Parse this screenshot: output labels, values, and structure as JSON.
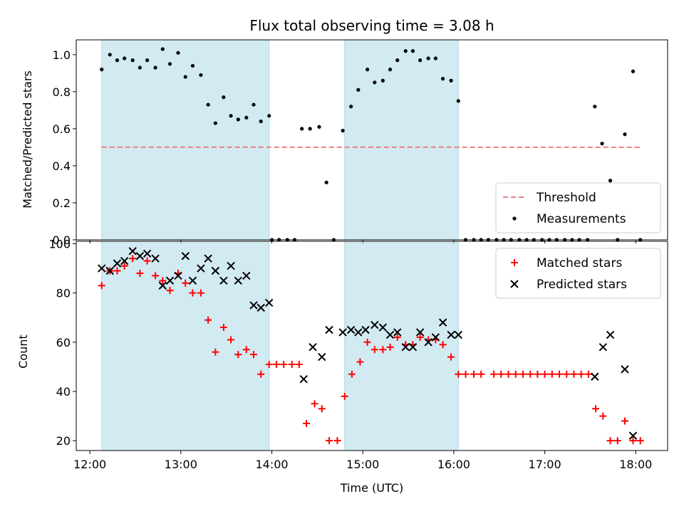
{
  "chart_data": {
    "type": "scatter",
    "title": "Flux total observing time = 3.08 h",
    "xlabel": "Time (UTC)",
    "x_unit": "hours UTC",
    "xlim": [
      11.85,
      18.35
    ],
    "x_tick_values": [
      12,
      13,
      14,
      15,
      16,
      17,
      18
    ],
    "x_tick_labels": [
      "12:00",
      "13:00",
      "14:00",
      "15:00",
      "16:00",
      "17:00",
      "18:00"
    ],
    "shaded_intervals": [
      [
        12.13,
        13.97
      ],
      [
        14.8,
        16.05
      ]
    ],
    "shade_color": "#add8e6",
    "panels": [
      {
        "ylabel": "Matched/Predicted stars",
        "ylim": [
          0,
          1.08
        ],
        "yticks": [
          "0.0",
          "0.2",
          "0.4",
          "0.6",
          "0.8",
          "1.0"
        ],
        "ytick_values": [
          0,
          0.2,
          0.4,
          0.6,
          0.8,
          1.0
        ],
        "legend": "bottom-right",
        "threshold": {
          "name": "Threshold",
          "value": 0.5,
          "x_range": [
            12.13,
            18.05
          ],
          "color": "#f08080"
        },
        "series": [
          {
            "name": "Measurements",
            "marker": "dot",
            "color": "#000000",
            "points": [
              [
                12.13,
                0.92
              ],
              [
                12.22,
                1.0
              ],
              [
                12.3,
                0.97
              ],
              [
                12.38,
                0.98
              ],
              [
                12.47,
                0.97
              ],
              [
                12.55,
                0.93
              ],
              [
                12.63,
                0.97
              ],
              [
                12.72,
                0.93
              ],
              [
                12.8,
                1.03
              ],
              [
                12.88,
                0.95
              ],
              [
                12.97,
                1.01
              ],
              [
                13.05,
                0.88
              ],
              [
                13.13,
                0.94
              ],
              [
                13.22,
                0.89
              ],
              [
                13.3,
                0.73
              ],
              [
                13.38,
                0.63
              ],
              [
                13.47,
                0.77
              ],
              [
                13.55,
                0.67
              ],
              [
                13.63,
                0.65
              ],
              [
                13.72,
                0.66
              ],
              [
                13.8,
                0.73
              ],
              [
                13.88,
                0.64
              ],
              [
                13.97,
                0.67
              ],
              [
                14.0,
                0.0
              ],
              [
                14.08,
                0.0
              ],
              [
                14.17,
                0.0
              ],
              [
                14.25,
                0.0
              ],
              [
                14.33,
                0.6
              ],
              [
                14.42,
                0.6
              ],
              [
                14.52,
                0.61
              ],
              [
                14.6,
                0.31
              ],
              [
                14.68,
                0.0
              ],
              [
                14.78,
                0.59
              ],
              [
                14.87,
                0.72
              ],
              [
                14.95,
                0.81
              ],
              [
                15.05,
                0.92
              ],
              [
                15.13,
                0.85
              ],
              [
                15.22,
                0.86
              ],
              [
                15.3,
                0.92
              ],
              [
                15.38,
                0.97
              ],
              [
                15.47,
                1.02
              ],
              [
                15.55,
                1.02
              ],
              [
                15.63,
                0.97
              ],
              [
                15.72,
                0.98
              ],
              [
                15.8,
                0.98
              ],
              [
                15.88,
                0.87
              ],
              [
                15.97,
                0.86
              ],
              [
                16.05,
                0.75
              ],
              [
                16.13,
                0.0
              ],
              [
                16.22,
                0.0
              ],
              [
                16.3,
                0.0
              ],
              [
                16.38,
                0.0
              ],
              [
                16.47,
                0.0
              ],
              [
                16.55,
                0.0
              ],
              [
                16.63,
                0.0
              ],
              [
                16.72,
                0.0
              ],
              [
                16.8,
                0.0
              ],
              [
                16.88,
                0.0
              ],
              [
                16.97,
                0.0
              ],
              [
                17.05,
                0.0
              ],
              [
                17.13,
                0.0
              ],
              [
                17.22,
                0.0
              ],
              [
                17.3,
                0.0
              ],
              [
                17.38,
                0.0
              ],
              [
                17.47,
                0.0
              ],
              [
                17.55,
                0.72
              ],
              [
                17.63,
                0.52
              ],
              [
                17.72,
                0.32
              ],
              [
                17.8,
                0.0
              ],
              [
                17.88,
                0.57
              ],
              [
                17.97,
                0.91
              ],
              [
                18.05,
                0.0
              ]
            ]
          }
        ]
      },
      {
        "ylabel": "Count",
        "ylim": [
          16,
          101
        ],
        "yticks": [
          "20",
          "40",
          "60",
          "80",
          "100"
        ],
        "ytick_values": [
          20,
          40,
          60,
          80,
          100
        ],
        "legend": "top-right",
        "series": [
          {
            "name": "Matched stars",
            "marker": "plus",
            "color": "#ff0000",
            "points": [
              [
                12.13,
                83
              ],
              [
                12.22,
                89
              ],
              [
                12.3,
                89
              ],
              [
                12.38,
                91
              ],
              [
                12.47,
                94
              ],
              [
                12.55,
                88
              ],
              [
                12.63,
                93
              ],
              [
                12.72,
                87
              ],
              [
                12.8,
                85
              ],
              [
                12.88,
                81
              ],
              [
                12.97,
                88
              ],
              [
                13.05,
                84
              ],
              [
                13.13,
                80
              ],
              [
                13.22,
                80
              ],
              [
                13.3,
                69
              ],
              [
                13.38,
                56
              ],
              [
                13.47,
                66
              ],
              [
                13.55,
                61
              ],
              [
                13.63,
                55
              ],
              [
                13.72,
                57
              ],
              [
                13.8,
                55
              ],
              [
                13.88,
                47
              ],
              [
                13.97,
                51
              ],
              [
                14.05,
                51
              ],
              [
                14.13,
                51
              ],
              [
                14.22,
                51
              ],
              [
                14.3,
                51
              ],
              [
                14.38,
                27
              ],
              [
                14.47,
                35
              ],
              [
                14.55,
                33
              ],
              [
                14.63,
                20
              ],
              [
                14.72,
                20
              ],
              [
                14.8,
                38
              ],
              [
                14.88,
                47
              ],
              [
                14.97,
                52
              ],
              [
                15.05,
                60
              ],
              [
                15.13,
                57
              ],
              [
                15.22,
                57
              ],
              [
                15.3,
                58
              ],
              [
                15.38,
                62
              ],
              [
                15.47,
                59
              ],
              [
                15.55,
                59
              ],
              [
                15.63,
                62
              ],
              [
                15.72,
                61
              ],
              [
                15.8,
                61
              ],
              [
                15.88,
                59
              ],
              [
                15.97,
                54
              ],
              [
                16.05,
                47
              ],
              [
                16.13,
                47
              ],
              [
                16.22,
                47
              ],
              [
                16.3,
                47
              ],
              [
                16.44,
                47
              ],
              [
                16.52,
                47
              ],
              [
                16.6,
                47
              ],
              [
                16.68,
                47
              ],
              [
                16.76,
                47
              ],
              [
                16.84,
                47
              ],
              [
                16.92,
                47
              ],
              [
                17.0,
                47
              ],
              [
                17.08,
                47
              ],
              [
                17.16,
                47
              ],
              [
                17.24,
                47
              ],
              [
                17.32,
                47
              ],
              [
                17.4,
                47
              ],
              [
                17.48,
                47
              ],
              [
                17.56,
                33
              ],
              [
                17.64,
                30
              ],
              [
                17.72,
                20
              ],
              [
                17.8,
                20
              ],
              [
                17.88,
                28
              ],
              [
                17.97,
                20
              ],
              [
                18.05,
                20
              ]
            ]
          },
          {
            "name": "Predicted stars",
            "marker": "cross",
            "color": "#000000",
            "points": [
              [
                12.13,
                90
              ],
              [
                12.22,
                89
              ],
              [
                12.3,
                92
              ],
              [
                12.38,
                93
              ],
              [
                12.47,
                97
              ],
              [
                12.55,
                95
              ],
              [
                12.63,
                96
              ],
              [
                12.72,
                94
              ],
              [
                12.8,
                83
              ],
              [
                12.88,
                85
              ],
              [
                12.97,
                87
              ],
              [
                13.05,
                95
              ],
              [
                13.13,
                85
              ],
              [
                13.22,
                90
              ],
              [
                13.3,
                94
              ],
              [
                13.38,
                89
              ],
              [
                13.47,
                85
              ],
              [
                13.55,
                91
              ],
              [
                13.63,
                85
              ],
              [
                13.72,
                87
              ],
              [
                13.8,
                75
              ],
              [
                13.88,
                74
              ],
              [
                13.97,
                76
              ],
              [
                14.35,
                45
              ],
              [
                14.45,
                58
              ],
              [
                14.55,
                54
              ],
              [
                14.63,
                65
              ],
              [
                14.78,
                64
              ],
              [
                14.87,
                65
              ],
              [
                14.95,
                64
              ],
              [
                15.03,
                65
              ],
              [
                15.13,
                67
              ],
              [
                15.22,
                66
              ],
              [
                15.3,
                63
              ],
              [
                15.38,
                64
              ],
              [
                15.47,
                58
              ],
              [
                15.55,
                58
              ],
              [
                15.63,
                64
              ],
              [
                15.72,
                60
              ],
              [
                15.8,
                62
              ],
              [
                15.88,
                68
              ],
              [
                15.97,
                63
              ],
              [
                16.05,
                63
              ],
              [
                17.55,
                46
              ],
              [
                17.64,
                58
              ],
              [
                17.72,
                63
              ],
              [
                17.88,
                49
              ],
              [
                17.97,
                22
              ]
            ]
          }
        ]
      }
    ]
  }
}
